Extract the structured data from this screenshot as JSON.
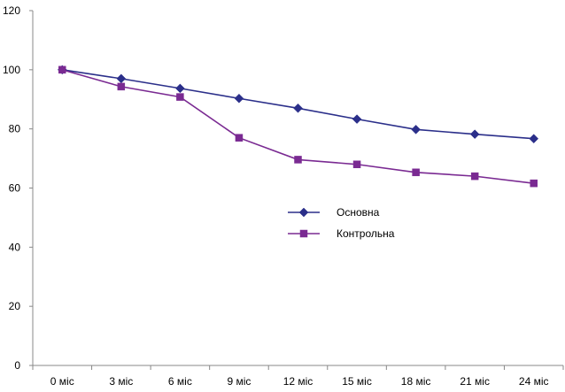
{
  "chart_data": {
    "type": "line",
    "title": "",
    "xlabel": "",
    "ylabel": "",
    "categories": [
      "0 міс",
      "3 міс",
      "6 міс",
      "9 міс",
      "12 міс",
      "15 міс",
      "18 міс",
      "21 міс",
      "24 міс"
    ],
    "ylim": [
      0,
      120
    ],
    "yticks": [
      0,
      20,
      40,
      60,
      80,
      100,
      120
    ],
    "grid": false,
    "legend_position": "center-right",
    "series": [
      {
        "name": "Основна",
        "marker": "diamond",
        "color": "#2b2f8a",
        "values": [
          100,
          97,
          93.7,
          90.3,
          87,
          83.3,
          79.8,
          78.2,
          76.7
        ]
      },
      {
        "name": "Контрольна",
        "marker": "square",
        "color": "#7a2a92",
        "values": [
          100,
          94.3,
          90.8,
          77,
          69.6,
          68,
          65.3,
          64,
          61.6
        ]
      }
    ]
  }
}
